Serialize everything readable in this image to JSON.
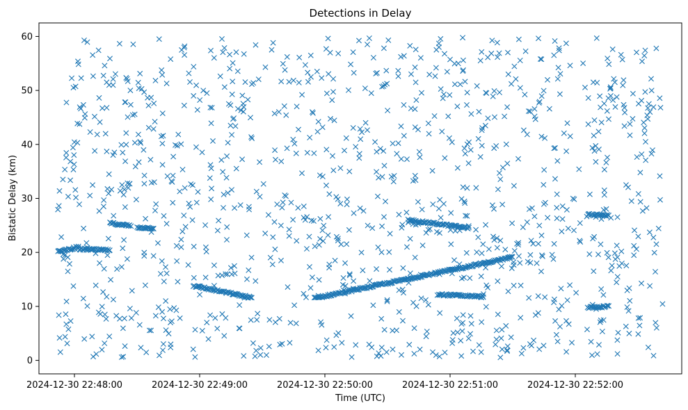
{
  "chart_data": {
    "type": "scatter",
    "title": "Detections in Delay",
    "xlabel": "Time (UTC)",
    "ylabel": "Bistatic Delay (km)",
    "marker": "x",
    "color": "#1f77b4",
    "grid": false,
    "xlim": [
      "2024-12-30 22:47:43",
      "2024-12-30 22:52:51"
    ],
    "ylim": [
      -2.5,
      62.5
    ],
    "xticks": [
      "2024-12-30 22:48:00",
      "2024-12-30 22:49:00",
      "2024-12-30 22:50:00",
      "2024-12-30 22:51:00",
      "2024-12-30 22:52:00"
    ],
    "yticks": [
      "0",
      "10",
      "20",
      "30",
      "40",
      "50",
      "60"
    ],
    "time_range": [
      "2024-12-30 22:47:52",
      "2024-12-30 22:52:42"
    ],
    "random_background_detections": 1150,
    "tracks": [
      {
        "start": [
          "2024-12-30 22:47:52",
          20.1
        ],
        "end": [
          "2024-12-30 22:48:02",
          21.0
        ]
      },
      {
        "start": [
          "2024-12-30 22:48:02",
          20.6
        ],
        "end": [
          "2024-12-30 22:48:17",
          20.4
        ]
      },
      {
        "start": [
          "2024-12-30 22:48:17",
          25.4
        ],
        "end": [
          "2024-12-30 22:48:27",
          24.9
        ]
      },
      {
        "start": [
          "2024-12-30 22:48:30",
          24.6
        ],
        "end": [
          "2024-12-30 22:48:38",
          24.5
        ]
      },
      {
        "start": [
          "2024-12-30 22:48:57",
          13.8
        ],
        "end": [
          "2024-12-30 22:49:25",
          11.6
        ]
      },
      {
        "start": [
          "2024-12-30 22:49:55",
          11.5
        ],
        "end": [
          "2024-12-30 22:51:30",
          19.1
        ]
      },
      {
        "start": [
          "2024-12-30 22:50:40",
          26.0
        ],
        "end": [
          "2024-12-30 22:51:09",
          24.5
        ]
      },
      {
        "start": [
          "2024-12-30 22:50:54",
          12.2
        ],
        "end": [
          "2024-12-30 22:51:16",
          11.8
        ]
      },
      {
        "start": [
          "2024-12-30 22:52:06",
          27.0
        ],
        "end": [
          "2024-12-30 22:52:16",
          26.8
        ]
      },
      {
        "start": [
          "2024-12-30 22:52:06",
          9.8
        ],
        "end": [
          "2024-12-30 22:52:16",
          10.0
        ]
      }
    ]
  }
}
